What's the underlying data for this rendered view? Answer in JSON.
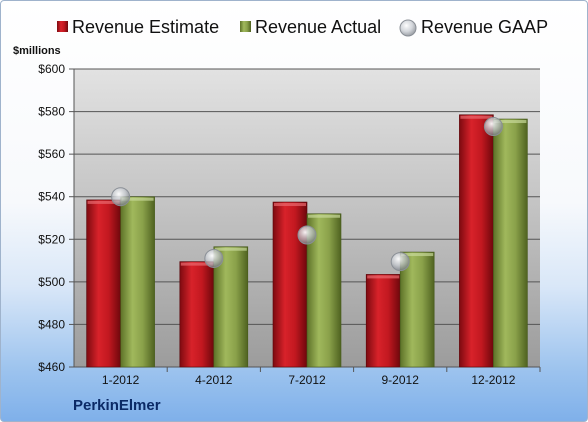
{
  "company": "PerkinElmer",
  "chart_data": {
    "type": "bar",
    "unit_label": "$millions",
    "categories": [
      "1-2012",
      "4-2012",
      "7-2012",
      "9-2012",
      "12-2012"
    ],
    "series": [
      {
        "name": "Revenue Estimate",
        "kind": "bar",
        "color": "#c8141c",
        "values": [
          538.5,
          509.5,
          537.5,
          503.5,
          578.5
        ]
      },
      {
        "name": "Revenue Actual",
        "kind": "bar",
        "color": "#8aa14a",
        "values": [
          540,
          516.5,
          532,
          514,
          576.5
        ]
      },
      {
        "name": "Revenue GAAP",
        "kind": "marker",
        "color": "#c8ccd2",
        "values": [
          540,
          511,
          522,
          509.5,
          573
        ]
      }
    ],
    "ylim": [
      460,
      600
    ],
    "yticks": [
      460,
      480,
      500,
      520,
      540,
      560,
      580,
      600
    ],
    "ytick_labels": [
      "$460",
      "$480",
      "$500",
      "$520",
      "$540",
      "$560",
      "$580",
      "$600"
    ],
    "grid": true,
    "legend_position": "top"
  }
}
